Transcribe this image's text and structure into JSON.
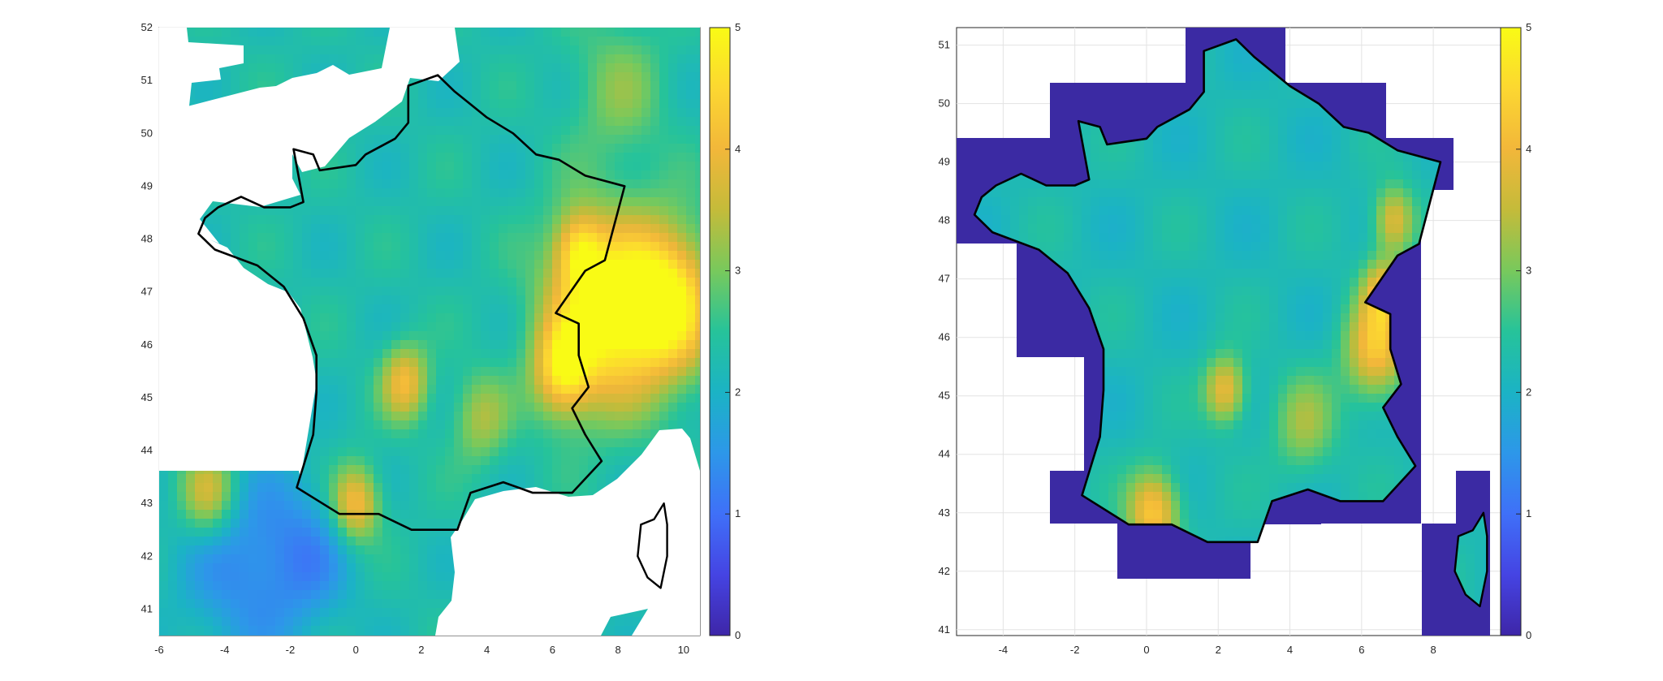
{
  "colormap": {
    "stops": [
      "#3e26a8",
      "#4544e3",
      "#3f70f8",
      "#2d97e9",
      "#1bb3c5",
      "#26c39a",
      "#78c95c",
      "#c4bb3a",
      "#f2b73a",
      "#fcd731",
      "#f9fb15"
    ]
  },
  "chart_data": [
    {
      "type": "heatmap",
      "title": "",
      "xlabel": "",
      "ylabel": "",
      "xlim": [
        -6,
        10.5
      ],
      "ylim": [
        40.5,
        52
      ],
      "x_ticks": [
        "-6",
        "-4",
        "-2",
        "0",
        "2",
        "4",
        "6",
        "8",
        "10"
      ],
      "y_ticks": [
        "41",
        "42",
        "43",
        "44",
        "45",
        "46",
        "47",
        "48",
        "49",
        "50",
        "51",
        "52"
      ],
      "grid": true,
      "colorbar": {
        "range": [
          0,
          5
        ],
        "ticks": [
          "0",
          "1",
          "2",
          "3",
          "4",
          "5"
        ],
        "placement": "right"
      },
      "hotspots": [
        {
          "lon": 7.5,
          "lat": 46.6,
          "value": 5.0,
          "spread": 1.2
        },
        {
          "lon": 9.5,
          "lat": 46.8,
          "value": 5.0,
          "spread": 1.0
        },
        {
          "lon": 6.3,
          "lat": 45.5,
          "value": 4.2,
          "spread": 0.6
        },
        {
          "lon": 6.8,
          "lat": 47.8,
          "value": 3.8,
          "spread": 0.5
        },
        {
          "lon": 1.5,
          "lat": 45.3,
          "value": 4.0,
          "spread": 0.5
        },
        {
          "lon": 0.0,
          "lat": 43.0,
          "value": 4.2,
          "spread": 0.5
        },
        {
          "lon": -4.5,
          "lat": 43.2,
          "value": 3.8,
          "spread": 0.6
        },
        {
          "lon": 3.8,
          "lat": 44.6,
          "value": 3.3,
          "spread": 0.6
        },
        {
          "lon": 8.0,
          "lat": 50.8,
          "value": 3.0,
          "spread": 1.0
        },
        {
          "lon": -3.5,
          "lat": 41.8,
          "value": 1.4,
          "spread": 1.3
        },
        {
          "lon": -1.5,
          "lat": 42.0,
          "value": 1.5,
          "spread": 1.0
        }
      ],
      "background_value": 2.3
    },
    {
      "type": "heatmap",
      "title": "",
      "xlabel": "",
      "ylabel": "",
      "xlim": [
        -5.3,
        9.9
      ],
      "ylim": [
        40.9,
        51.3
      ],
      "x_ticks": [
        "-4",
        "-2",
        "0",
        "2",
        "4",
        "6",
        "8"
      ],
      "y_ticks": [
        "41",
        "42",
        "43",
        "44",
        "45",
        "46",
        "47",
        "48",
        "49",
        "50",
        "51"
      ],
      "grid": true,
      "colorbar": {
        "range": [
          0,
          5
        ],
        "ticks": [
          "0",
          "1",
          "2",
          "3",
          "4",
          "5"
        ],
        "placement": "right"
      },
      "hotspots": [
        {
          "lon": 6.4,
          "lat": 45.8,
          "value": 4.2,
          "spread": 0.6
        },
        {
          "lon": 6.9,
          "lat": 48.0,
          "value": 3.9,
          "spread": 0.4
        },
        {
          "lon": 6.6,
          "lat": 46.8,
          "value": 3.8,
          "spread": 0.4
        },
        {
          "lon": 2.2,
          "lat": 45.1,
          "value": 4.0,
          "spread": 0.4
        },
        {
          "lon": 0.2,
          "lat": 43.0,
          "value": 4.3,
          "spread": 0.5
        },
        {
          "lon": 4.4,
          "lat": 44.5,
          "value": 3.2,
          "spread": 0.6
        }
      ],
      "background_value": 2.2,
      "mask_value": 0
    }
  ]
}
